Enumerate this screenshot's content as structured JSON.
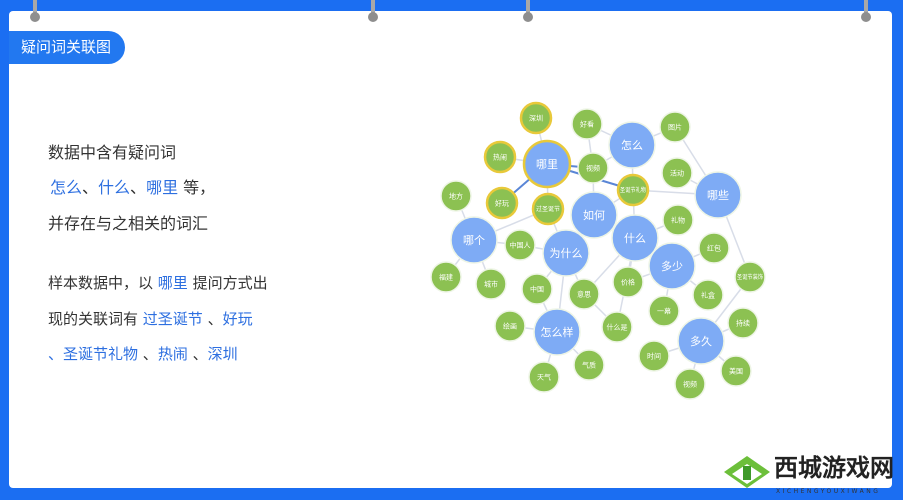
{
  "title": "疑问词关联图",
  "description": {
    "line1": "数据中含有疑问词",
    "line2_words": [
      "怎么",
      "什么",
      "哪里"
    ],
    "line2_sep": "、",
    "line2_suffix": " 等，",
    "line3": "并存在与之相关的词汇",
    "para2_prefix": "样本数据中，以 ",
    "para2_keyword": "哪里",
    "para2_mid": " 提问方式出",
    "para2_line2_prefix": "现的关联词有 ",
    "para2_terms": [
      "过圣诞节",
      "好玩",
      "圣诞节礼物",
      "热闹",
      "深圳"
    ]
  },
  "colors": {
    "frame": "#1b6ef2",
    "primary_node": "#7eabf5",
    "secondary_node": "#8cc152",
    "highlight_ring": "#e8c93a",
    "accent_text": "#2d6fe0"
  },
  "graph": {
    "nodes": [
      {
        "label": "深圳",
        "kind": "highlight"
      },
      {
        "label": "好看",
        "kind": "secondary"
      },
      {
        "label": "怎么",
        "kind": "primary"
      },
      {
        "label": "图片",
        "kind": "secondary"
      },
      {
        "label": "热闹",
        "kind": "highlight"
      },
      {
        "label": "哪里",
        "kind": "primary-highlight"
      },
      {
        "label": "视频",
        "kind": "secondary"
      },
      {
        "label": "活动",
        "kind": "secondary"
      },
      {
        "label": "哪些",
        "kind": "primary"
      },
      {
        "label": "地方",
        "kind": "secondary"
      },
      {
        "label": "好玩",
        "kind": "highlight"
      },
      {
        "label": "过圣诞节",
        "kind": "highlight"
      },
      {
        "label": "圣诞节礼物",
        "kind": "highlight"
      },
      {
        "label": "如何",
        "kind": "primary"
      },
      {
        "label": "礼物",
        "kind": "secondary"
      },
      {
        "label": "哪个",
        "kind": "primary"
      },
      {
        "label": "中国人",
        "kind": "secondary"
      },
      {
        "label": "为什么",
        "kind": "primary"
      },
      {
        "label": "什么",
        "kind": "primary"
      },
      {
        "label": "红包",
        "kind": "secondary"
      },
      {
        "label": "福建",
        "kind": "secondary"
      },
      {
        "label": "城市",
        "kind": "secondary"
      },
      {
        "label": "中国",
        "kind": "secondary"
      },
      {
        "label": "意思",
        "kind": "secondary"
      },
      {
        "label": "价格",
        "kind": "secondary"
      },
      {
        "label": "多少",
        "kind": "primary"
      },
      {
        "label": "圣诞节装饰",
        "kind": "secondary"
      },
      {
        "label": "一幕",
        "kind": "secondary"
      },
      {
        "label": "礼盒",
        "kind": "secondary"
      },
      {
        "label": "绘画",
        "kind": "secondary"
      },
      {
        "label": "怎么样",
        "kind": "primary"
      },
      {
        "label": "什么是",
        "kind": "secondary"
      },
      {
        "label": "持续",
        "kind": "secondary"
      },
      {
        "label": "多久",
        "kind": "primary"
      },
      {
        "label": "时间",
        "kind": "secondary"
      },
      {
        "label": "气质",
        "kind": "secondary"
      },
      {
        "label": "天气",
        "kind": "secondary"
      },
      {
        "label": "美国",
        "kind": "secondary"
      },
      {
        "label": "视频",
        "kind": "secondary"
      }
    ],
    "edges": [
      [
        0,
        5
      ],
      [
        4,
        5
      ],
      [
        10,
        5
      ],
      [
        11,
        5
      ],
      [
        5,
        6
      ],
      [
        5,
        12
      ],
      [
        1,
        6
      ],
      [
        1,
        2
      ],
      [
        2,
        6
      ],
      [
        2,
        3
      ],
      [
        2,
        12
      ],
      [
        3,
        8
      ],
      [
        7,
        8
      ],
      [
        12,
        8
      ],
      [
        12,
        13
      ],
      [
        6,
        13
      ],
      [
        13,
        17
      ],
      [
        13,
        18
      ],
      [
        11,
        17
      ],
      [
        9,
        15
      ],
      [
        15,
        16
      ],
      [
        15,
        20
      ],
      [
        15,
        21
      ],
      [
        15,
        11
      ],
      [
        16,
        17
      ],
      [
        17,
        22
      ],
      [
        17,
        23
      ],
      [
        17,
        30
      ],
      [
        18,
        23
      ],
      [
        18,
        24
      ],
      [
        18,
        25
      ],
      [
        18,
        12
      ],
      [
        18,
        31
      ],
      [
        14,
        18
      ],
      [
        25,
        19
      ],
      [
        25,
        27
      ],
      [
        25,
        28
      ],
      [
        25,
        24
      ],
      [
        8,
        26
      ],
      [
        26,
        33
      ],
      [
        33,
        32
      ],
      [
        33,
        34
      ],
      [
        33,
        37
      ],
      [
        33,
        38
      ],
      [
        30,
        29
      ],
      [
        30,
        35
      ],
      [
        30,
        36
      ],
      [
        30,
        22
      ],
      [
        31,
        23
      ]
    ]
  },
  "logo": {
    "name": "西城游戏网",
    "subtitle": "XICHENGYOUXIWANG"
  }
}
